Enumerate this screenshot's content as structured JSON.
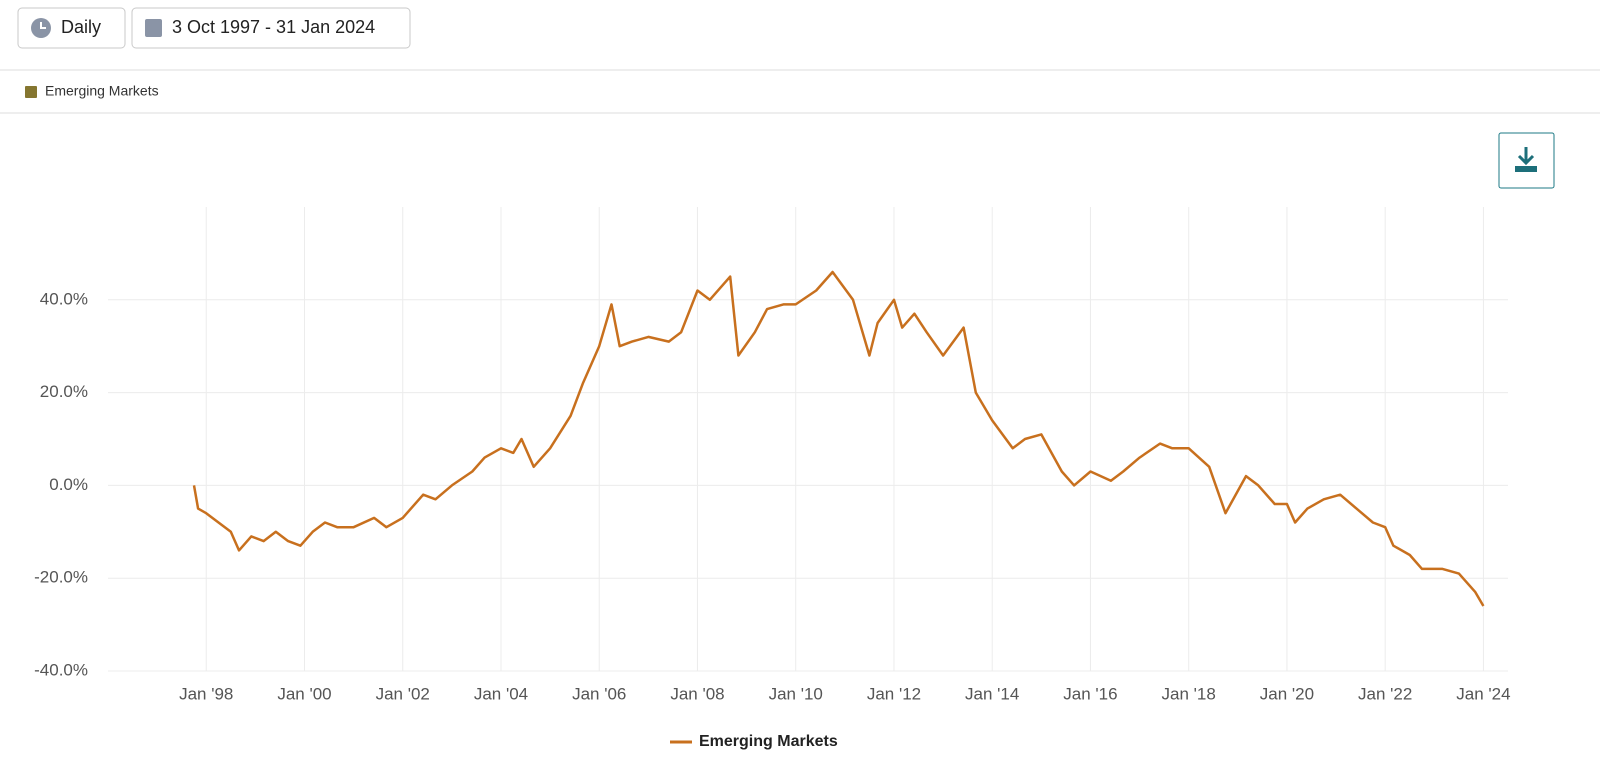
{
  "toolbar": {
    "frequency": "Daily",
    "date_range": "3 Oct 1997 - 31 Jan 2024"
  },
  "filter_legend": {
    "label": "Emerging Markets",
    "color": "#857630"
  },
  "chart_data": {
    "type": "line",
    "x": [
      "1997-10",
      "1997-11",
      "1998-01",
      "1998-04",
      "1998-07",
      "1998-09",
      "1998-12",
      "1999-03",
      "1999-06",
      "1999-09",
      "1999-12",
      "2000-03",
      "2000-06",
      "2000-09",
      "2001-01",
      "2001-06",
      "2001-09",
      "2002-01",
      "2002-06",
      "2002-09",
      "2003-01",
      "2003-06",
      "2003-09",
      "2004-01",
      "2004-04",
      "2004-06",
      "2004-09",
      "2005-01",
      "2005-06",
      "2005-09",
      "2006-01",
      "2006-04",
      "2006-06",
      "2006-09",
      "2007-01",
      "2007-06",
      "2007-09",
      "2008-01",
      "2008-04",
      "2008-09",
      "2008-11",
      "2009-03",
      "2009-06",
      "2009-10",
      "2010-01",
      "2010-06",
      "2010-10",
      "2011-03",
      "2011-07",
      "2011-09",
      "2012-01",
      "2012-03",
      "2012-06",
      "2012-09",
      "2013-01",
      "2013-06",
      "2013-09",
      "2014-01",
      "2014-06",
      "2014-09",
      "2015-01",
      "2015-06",
      "2015-09",
      "2016-01",
      "2016-06",
      "2016-09",
      "2017-01",
      "2017-06",
      "2017-09",
      "2018-01",
      "2018-06",
      "2018-10",
      "2019-03",
      "2019-06",
      "2019-10",
      "2020-01",
      "2020-03",
      "2020-06",
      "2020-10",
      "2021-02",
      "2021-06",
      "2021-10",
      "2022-01",
      "2022-03",
      "2022-07",
      "2022-10",
      "2023-03",
      "2023-07",
      "2023-11",
      "2024-01"
    ],
    "series": [
      {
        "name": "Emerging Markets",
        "color": "#c8701e",
        "values": [
          0,
          -5,
          -6,
          -8,
          -10,
          -14,
          -11,
          -12,
          -10,
          -12,
          -13,
          -10,
          -8,
          -9,
          -9,
          -7,
          -9,
          -7,
          -2,
          -3,
          0,
          3,
          6,
          8,
          7,
          10,
          4,
          8,
          15,
          22,
          30,
          39,
          30,
          31,
          32,
          31,
          33,
          42,
          40,
          45,
          28,
          33,
          38,
          39,
          39,
          42,
          46,
          40,
          28,
          35,
          40,
          34,
          37,
          33,
          28,
          34,
          20,
          14,
          8,
          10,
          11,
          3,
          0,
          3,
          1,
          3,
          6,
          9,
          8,
          8,
          4,
          -6,
          2,
          0,
          -4,
          -4,
          -8,
          -5,
          -3,
          -2,
          -5,
          -8,
          -9,
          -13,
          -15,
          -18,
          -18,
          -19,
          -23,
          -26
        ]
      }
    ],
    "xlim": [
      "1996-01",
      "2024-07"
    ],
    "xticks": [
      {
        "value": "1998-01",
        "label": "Jan '98"
      },
      {
        "value": "2000-01",
        "label": "Jan '00"
      },
      {
        "value": "2002-01",
        "label": "Jan '02"
      },
      {
        "value": "2004-01",
        "label": "Jan '04"
      },
      {
        "value": "2006-01",
        "label": "Jan '06"
      },
      {
        "value": "2008-01",
        "label": "Jan '08"
      },
      {
        "value": "2010-01",
        "label": "Jan '10"
      },
      {
        "value": "2012-01",
        "label": "Jan '12"
      },
      {
        "value": "2014-01",
        "label": "Jan '14"
      },
      {
        "value": "2016-01",
        "label": "Jan '16"
      },
      {
        "value": "2018-01",
        "label": "Jan '18"
      },
      {
        "value": "2020-01",
        "label": "Jan '20"
      },
      {
        "value": "2022-01",
        "label": "Jan '22"
      },
      {
        "value": "2024-01",
        "label": "Jan '24"
      }
    ],
    "ylim": [
      -40,
      60
    ],
    "yticks": [
      {
        "value": -40,
        "label": "-40.0%"
      },
      {
        "value": -20,
        "label": "-20.0%"
      },
      {
        "value": 0,
        "label": "0.0%"
      },
      {
        "value": 20,
        "label": "20.0%"
      },
      {
        "value": 40,
        "label": "40.0%"
      }
    ],
    "grid": true,
    "legend": "bottom"
  }
}
